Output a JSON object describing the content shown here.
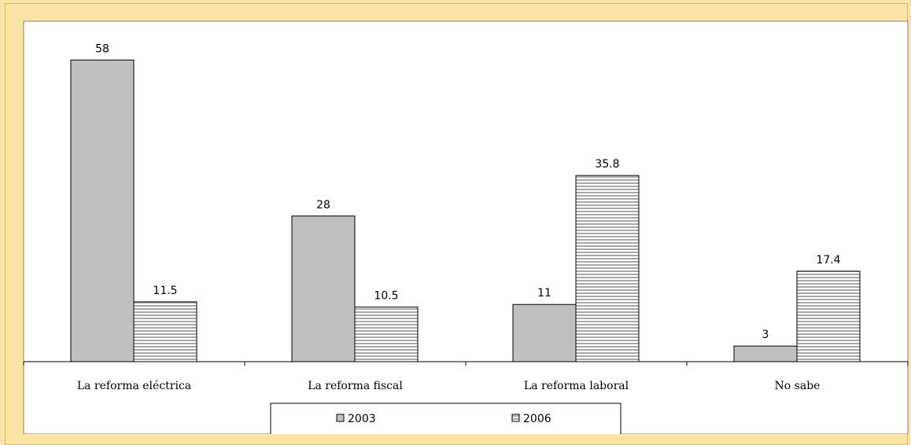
{
  "chart_data": {
    "type": "bar",
    "categories": [
      "La reforma eléctrica",
      "La reforma fiscal",
      "La reforma laboral",
      "No sabe"
    ],
    "series": [
      {
        "name": "2003",
        "values": [
          58,
          28,
          11,
          3
        ],
        "color": "#c0c0c0",
        "pattern": "solid"
      },
      {
        "name": "2006",
        "values": [
          11.5,
          10.5,
          35.8,
          17.4
        ],
        "color": "#ffffff",
        "pattern": "horizontal-stripes"
      }
    ],
    "value_labels": [
      [
        "58",
        "28",
        "11",
        "3"
      ],
      [
        "11.5",
        "10.5",
        "35.8",
        "17.4"
      ]
    ],
    "ylim": [
      0,
      65
    ],
    "grid": false,
    "legend_position": "bottom"
  },
  "colors": {
    "background": "#fce3a6",
    "plot_background": "#ffffff",
    "bar_2003": "#c0c0c0",
    "stripe": "#a0a0a0"
  }
}
